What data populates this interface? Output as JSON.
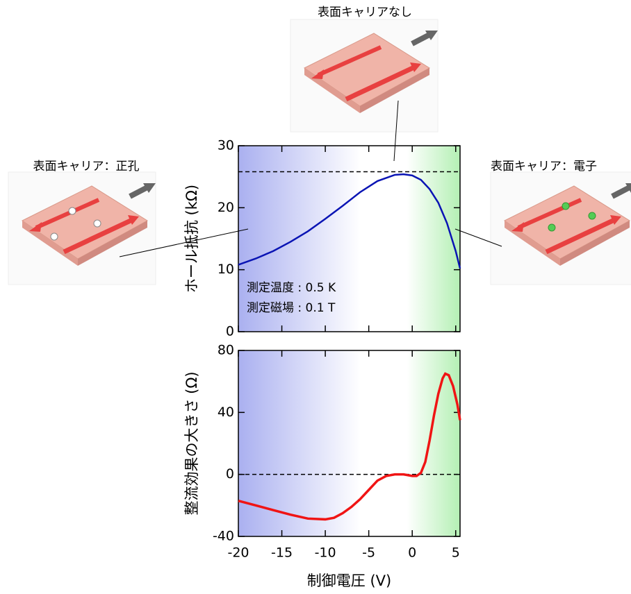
{
  "chart_data": [
    {
      "type": "line",
      "ylabel": "ホール抵抗 (kΩ)",
      "xlim": [
        -20,
        5.5
      ],
      "ylim": [
        0,
        30
      ],
      "yticks": [
        0,
        10,
        20,
        30
      ],
      "hline": 25.8,
      "annotations": [
        "測定温度 : 0.5 K",
        "測定磁場 : 0.1 T"
      ],
      "series": [
        {
          "color": "#0a14b4",
          "x": [
            -20,
            -18,
            -16,
            -14,
            -12,
            -10,
            -8,
            -6,
            -4,
            -2,
            -1,
            0,
            1,
            2,
            3,
            4,
            5,
            5.5
          ],
          "values": [
            10.8,
            11.8,
            13,
            14.5,
            16.2,
            18.2,
            20.3,
            22.5,
            24.3,
            25.3,
            25.4,
            25.2,
            24.5,
            23,
            20.8,
            17.5,
            13,
            10.2
          ]
        }
      ]
    },
    {
      "type": "line",
      "ylabel": "整流効果の大きさ (Ω)",
      "xlabel": "制御電圧 (V)",
      "xlim": [
        -20,
        5.5
      ],
      "ylim": [
        -40,
        80
      ],
      "yticks": [
        -40,
        0,
        40,
        80
      ],
      "xticks": [
        -20,
        -15,
        -10,
        -5,
        0,
        5
      ],
      "hline": 0,
      "series": [
        {
          "color": "#f01414",
          "x": [
            -20,
            -18,
            -16,
            -14,
            -12,
            -10,
            -9,
            -8,
            -7,
            -6,
            -5,
            -4,
            -3,
            -2,
            -1,
            0,
            0.5,
            1,
            1.5,
            2,
            2.5,
            3,
            3.5,
            3.8,
            4.2,
            4.7,
            5.2,
            5.5
          ],
          "values": [
            -17,
            -20,
            -23,
            -26,
            -28.5,
            -29,
            -28,
            -25,
            -21,
            -16,
            -10,
            -4,
            -1,
            0,
            0,
            -1,
            -1,
            1,
            8,
            22,
            38,
            52,
            62,
            65,
            64,
            57,
            45,
            35
          ]
        }
      ]
    }
  ],
  "insets": [
    "表面キャリアなし",
    "表面キャリア：正孔",
    "表面キャリア：電子"
  ]
}
